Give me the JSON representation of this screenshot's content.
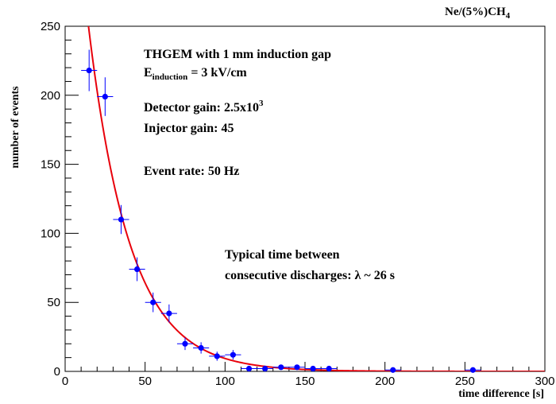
{
  "chart_data": {
    "type": "scatter",
    "title": "Ne/(5%)CH",
    "title_subscript": "4",
    "xlabel": "time difference [s]",
    "ylabel": "number of events",
    "xlim": [
      0,
      300
    ],
    "ylim": [
      0,
      250
    ],
    "x_ticks": [
      0,
      50,
      100,
      150,
      200,
      250,
      300
    ],
    "y_ticks": [
      0,
      50,
      100,
      150,
      200,
      250
    ],
    "grid": false,
    "colors": {
      "points": "#0000ff",
      "fit": "#e8000b",
      "errors": "#0000ff"
    },
    "series": [
      {
        "kind": "points-with-errors",
        "x": [
          15,
          25,
          35,
          45,
          55,
          65,
          75,
          85,
          95,
          105,
          115,
          125,
          135,
          145,
          155,
          165,
          205,
          255
        ],
        "y": [
          218,
          199,
          110,
          74,
          50,
          42,
          20,
          17,
          11,
          12,
          2,
          2,
          3,
          3,
          2,
          2,
          1,
          1
        ],
        "yerr": [
          15,
          14,
          10.5,
          8.6,
          7.1,
          6.5,
          4.5,
          4.1,
          3.3,
          3.5,
          1.4,
          1.4,
          1.7,
          1.7,
          1.4,
          1.4,
          1.0,
          1.0
        ],
        "xerr": 5
      },
      {
        "kind": "fit-curve",
        "function": "exponential",
        "amplitude": 438.6,
        "lambda": 26,
        "x_range": [
          10,
          300
        ]
      }
    ],
    "annotations": {
      "line1": "THGEM with 1 mm induction gap",
      "line2_main": "E",
      "line2_sub": "induction",
      "line2_rest": " = 3 kV/cm",
      "line3_main": "Detector gain: 2.5x10",
      "line3_sup": "3",
      "line4": "Injector gain: 45",
      "line5": "Event rate: 50 Hz",
      "line6": "Typical time between",
      "line7": "consecutive discharges:  λ ~ 26 s"
    }
  }
}
